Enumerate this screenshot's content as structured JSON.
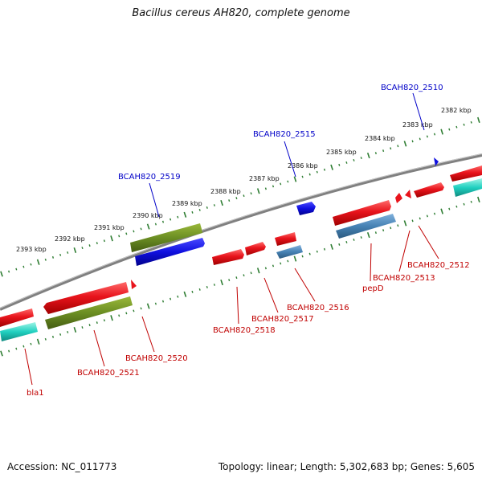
{
  "title": "Bacillus cereus AH820, complete genome",
  "footer": {
    "accession": "Accession: NC_011773",
    "summary": "Topology: linear; Length: 5,302,683 bp; Genes: 5,605"
  },
  "colors": {
    "backbone": "#808080",
    "ruler": "#2e7d32",
    "cds_red": "#e8141c",
    "cds_blue": "#1010e0",
    "cds_olive": "#6b8e23",
    "cds_steel": "#4682b4",
    "cds_teal": "#20c0b0",
    "label_blue": "#0000c8",
    "label_red": "#c00000"
  },
  "ruler_labels": [
    {
      "text": "2393 kbp"
    },
    {
      "text": "2392 kbp"
    },
    {
      "text": "2391 kbp"
    },
    {
      "text": "2390 kbp"
    },
    {
      "text": "2389 kbp"
    },
    {
      "text": "2388 kbp"
    },
    {
      "text": "2387 kbp"
    },
    {
      "text": "2386 kbp"
    },
    {
      "text": "2385 kbp"
    },
    {
      "text": "2384 kbp"
    },
    {
      "text": "2383 kbp"
    },
    {
      "text": "2382 kbp"
    }
  ],
  "gene_labels_top": [
    "BCAH820_2519",
    "BCAH820_2515",
    "BCAH820_2510"
  ],
  "gene_labels_bottom": [
    "bla1",
    "BCAH820_2521",
    "BCAH820_2520",
    "BCAH820_2518",
    "BCAH820_2517",
    "BCAH820_2516",
    "pepD",
    "BCAH820_2513",
    "BCAH820_2512"
  ]
}
